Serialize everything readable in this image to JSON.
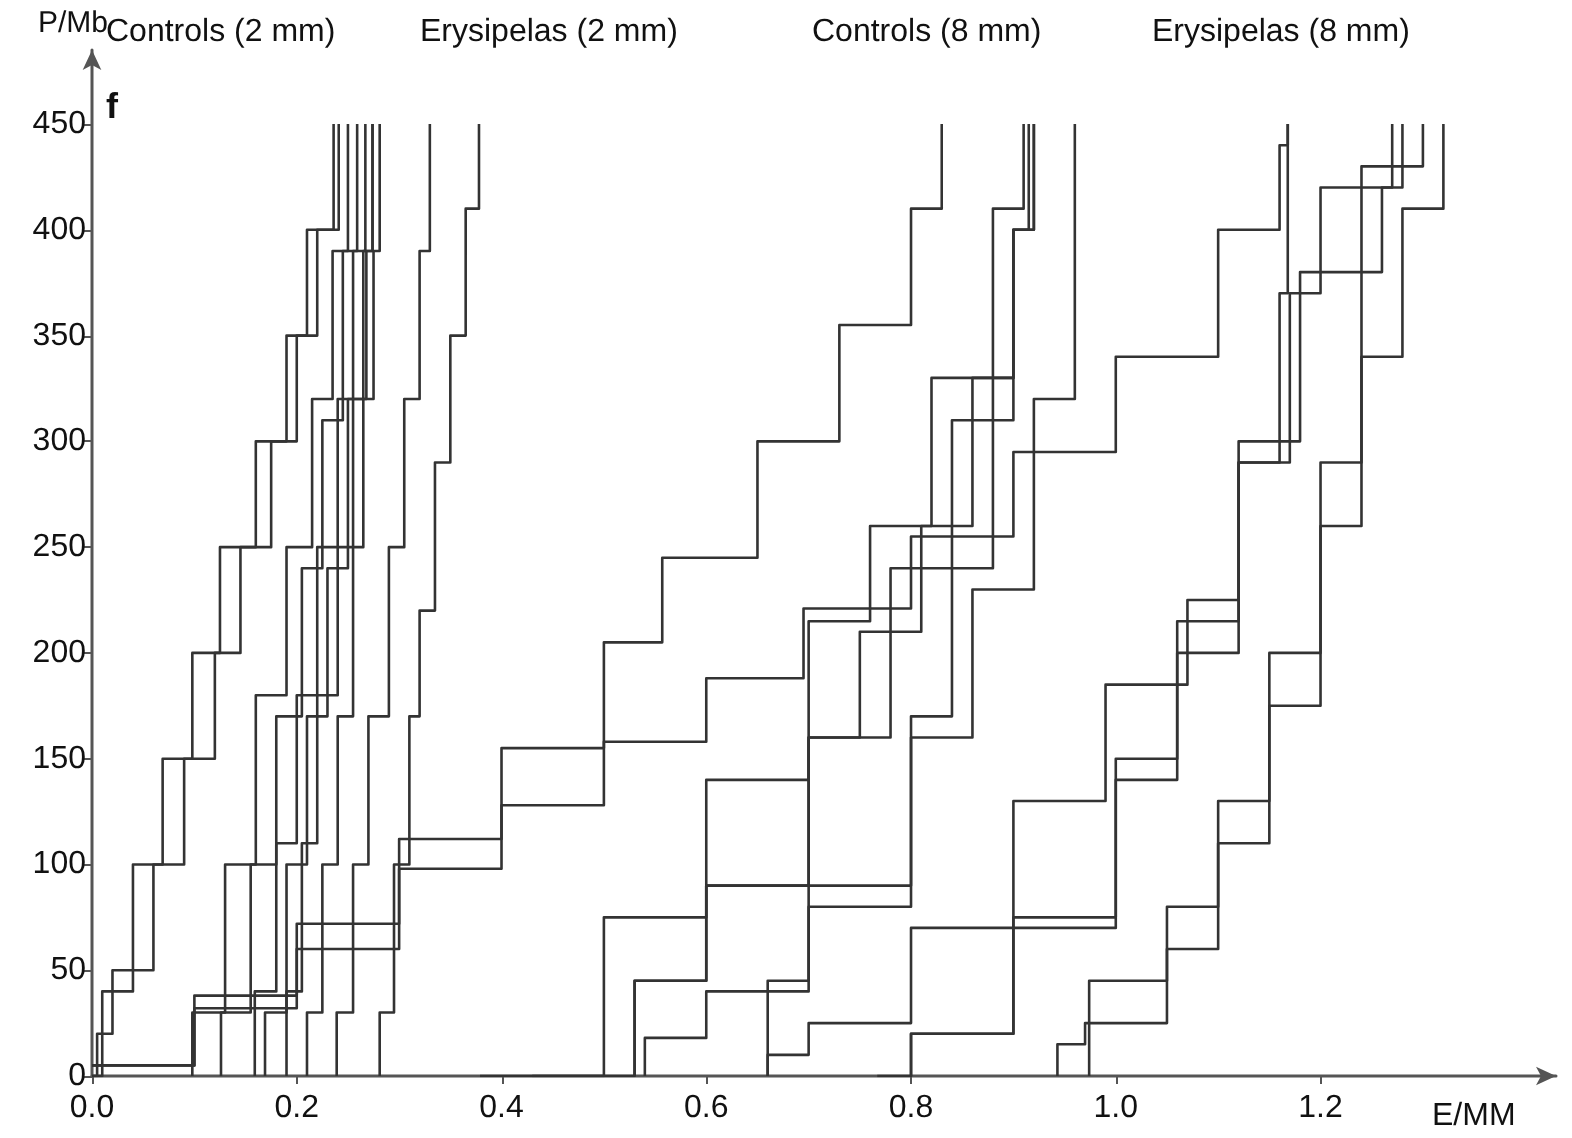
{
  "chart_data": {
    "type": "step",
    "xlabel": "E/MM",
    "ylabel": "P/Mb",
    "annotations": [
      "Controls (2 mm)",
      "Erysipelas (2 mm)",
      "Controls (8 mm)",
      "Erysipelas (8 mm)",
      "f"
    ],
    "xlim": [
      0,
      1.43
    ],
    "ylim": [
      0,
      485
    ],
    "xticks": [
      {
        "value": 0,
        "label": "0.0"
      },
      {
        "value": 0.2,
        "label": "0.2"
      },
      {
        "value": 0.4,
        "label": "0.4"
      },
      {
        "value": 0.6,
        "label": "0.6"
      },
      {
        "value": 0.8,
        "label": "0.8"
      },
      {
        "value": 1,
        "label": "1.0"
      },
      {
        "value": 1.2,
        "label": "1.2"
      }
    ],
    "yticks": [
      0,
      50,
      100,
      150,
      200,
      250,
      300,
      350,
      400,
      450
    ],
    "grid": false,
    "marker": "none",
    "line_style": "solid",
    "series": [
      {
        "color": "#333333",
        "x": [
          0,
          0.01,
          0.04,
          0.069,
          0.098,
          0.125,
          0.16,
          0.19,
          0.21,
          0.236,
          0.236
        ],
        "values": [
          0,
          40,
          100,
          150,
          200,
          250,
          300,
          350,
          400,
          440,
          450
        ]
      },
      {
        "color": "#333333",
        "x": [
          0,
          0.005,
          0.02,
          0.06,
          0.09,
          0.12,
          0.145,
          0.175,
          0.2,
          0.22,
          0.241
        ],
        "values": [
          0,
          20,
          50,
          100,
          150,
          200,
          250,
          300,
          350,
          400,
          450
        ]
      },
      {
        "color": "#333333",
        "x": [
          0.098,
          0.098,
          0.13,
          0.16,
          0.19,
          0.215,
          0.235,
          0.25
        ],
        "values": [
          0,
          30,
          100,
          180,
          250,
          320,
          390,
          450
        ]
      },
      {
        "color": "#333333",
        "x": [
          0.126,
          0.126,
          0.155,
          0.18,
          0.205,
          0.225,
          0.245,
          0.259
        ],
        "values": [
          0,
          30,
          100,
          170,
          240,
          310,
          390,
          450
        ]
      },
      {
        "color": "#333333",
        "x": [
          0.159,
          0.159,
          0.18,
          0.2,
          0.22,
          0.24,
          0.255,
          0.267
        ],
        "values": [
          0,
          40,
          110,
          180,
          250,
          320,
          390,
          450
        ]
      },
      {
        "color": "#333333",
        "x": [
          0.169,
          0.169,
          0.19,
          0.21,
          0.23,
          0.25,
          0.265,
          0.274
        ],
        "values": [
          0,
          30,
          100,
          170,
          240,
          320,
          390,
          450
        ]
      },
      {
        "color": "#333333",
        "x": [
          0.19,
          0.19,
          0.205,
          0.22,
          0.24,
          0.255,
          0.268,
          0.274
        ],
        "values": [
          0,
          40,
          110,
          180,
          250,
          320,
          390,
          450
        ]
      },
      {
        "color": "#333333",
        "x": [
          0.21,
          0.21,
          0.225,
          0.24,
          0.255,
          0.265,
          0.275,
          0.281
        ],
        "values": [
          0,
          30,
          100,
          170,
          250,
          320,
          390,
          450
        ]
      },
      {
        "color": "#333333",
        "x": [
          0.239,
          0.239,
          0.255,
          0.27,
          0.29,
          0.305,
          0.32,
          0.33
        ],
        "values": [
          0,
          30,
          100,
          170,
          250,
          320,
          390,
          450
        ]
      },
      {
        "color": "#333333",
        "x": [
          0.281,
          0.281,
          0.295,
          0.31,
          0.32,
          0.335,
          0.35,
          0.365,
          0.378
        ],
        "values": [
          0,
          30,
          100,
          170,
          220,
          290,
          350,
          410,
          450
        ]
      },
      {
        "color": "#333333",
        "x": [
          0,
          0.1,
          0.2,
          0.3,
          0.4,
          0.5,
          0.557,
          0.65,
          0.73,
          0.8,
          0.83
        ],
        "values": [
          5,
          38,
          72,
          112,
          155,
          205,
          245,
          300,
          355,
          410,
          450
        ]
      },
      {
        "color": "#333333",
        "x": [
          0,
          0.1,
          0.2,
          0.3,
          0.4,
          0.5,
          0.6,
          0.695,
          0.8,
          0.9,
          1.0,
          1.1,
          1.16,
          1.168
        ],
        "values": [
          5,
          32,
          60,
          98,
          128,
          158,
          188,
          221,
          255,
          295,
          340,
          400,
          440,
          450
        ]
      },
      {
        "color": "#333333",
        "x": [
          0.379,
          0.5,
          0.6,
          0.7,
          0.76,
          0.82,
          0.88,
          0.91
        ],
        "values": [
          0,
          75,
          140,
          215,
          260,
          330,
          410,
          450
        ]
      },
      {
        "color": "#333333",
        "x": [
          0.43,
          0.53,
          0.6,
          0.7,
          0.78,
          0.84,
          0.9,
          0.92
        ],
        "values": [
          0,
          45,
          90,
          160,
          240,
          310,
          400,
          450
        ]
      },
      {
        "color": "#333333",
        "x": [
          0.53,
          0.53,
          0.6,
          0.7,
          0.75,
          0.81,
          0.86,
          0.9,
          0.915
        ],
        "values": [
          0,
          45,
          90,
          160,
          210,
          260,
          330,
          400,
          450
        ]
      },
      {
        "color": "#333333",
        "x": [
          0.54,
          0.54,
          0.6,
          0.7,
          0.8,
          0.86,
          0.92,
          0.96
        ],
        "values": [
          0,
          18,
          40,
          90,
          160,
          230,
          320,
          450
        ]
      },
      {
        "color": "#333333",
        "x": [
          0.66,
          0.66,
          0.7,
          0.8,
          0.84,
          0.88,
          0.9,
          0.92
        ],
        "values": [
          0,
          45,
          80,
          170,
          240,
          330,
          400,
          450
        ]
      },
      {
        "color": "#333333",
        "x": [
          0.66,
          0.66,
          0.7,
          0.8,
          0.9,
          0.99,
          1.07,
          1.12,
          1.16,
          1.168
        ],
        "values": [
          0,
          10,
          25,
          70,
          130,
          185,
          225,
          290,
          370,
          450
        ]
      },
      {
        "color": "#333333",
        "x": [
          0.767,
          0.8,
          0.9,
          1.0,
          1.06,
          1.12,
          1.17,
          1.2,
          1.27
        ],
        "values": [
          0,
          20,
          70,
          140,
          200,
          290,
          370,
          420,
          450
        ]
      },
      {
        "color": "#333333",
        "x": [
          0.8,
          0.8,
          0.9,
          1.0,
          1.06,
          1.12,
          1.18,
          1.24,
          1.3
        ],
        "values": [
          0,
          20,
          75,
          150,
          215,
          300,
          380,
          430,
          450
        ]
      },
      {
        "color": "#333333",
        "x": [
          0.943,
          0.943,
          0.97,
          1.05,
          1.1,
          1.15,
          1.2,
          1.24,
          1.28,
          1.32
        ],
        "values": [
          0,
          15,
          25,
          60,
          110,
          175,
          260,
          340,
          410,
          450
        ]
      },
      {
        "color": "#333333",
        "x": [
          0.974,
          0.974,
          1.05,
          1.1,
          1.15,
          1.2,
          1.24,
          1.26,
          1.28
        ],
        "values": [
          0,
          45,
          80,
          130,
          200,
          290,
          380,
          420,
          450
        ]
      }
    ]
  }
}
